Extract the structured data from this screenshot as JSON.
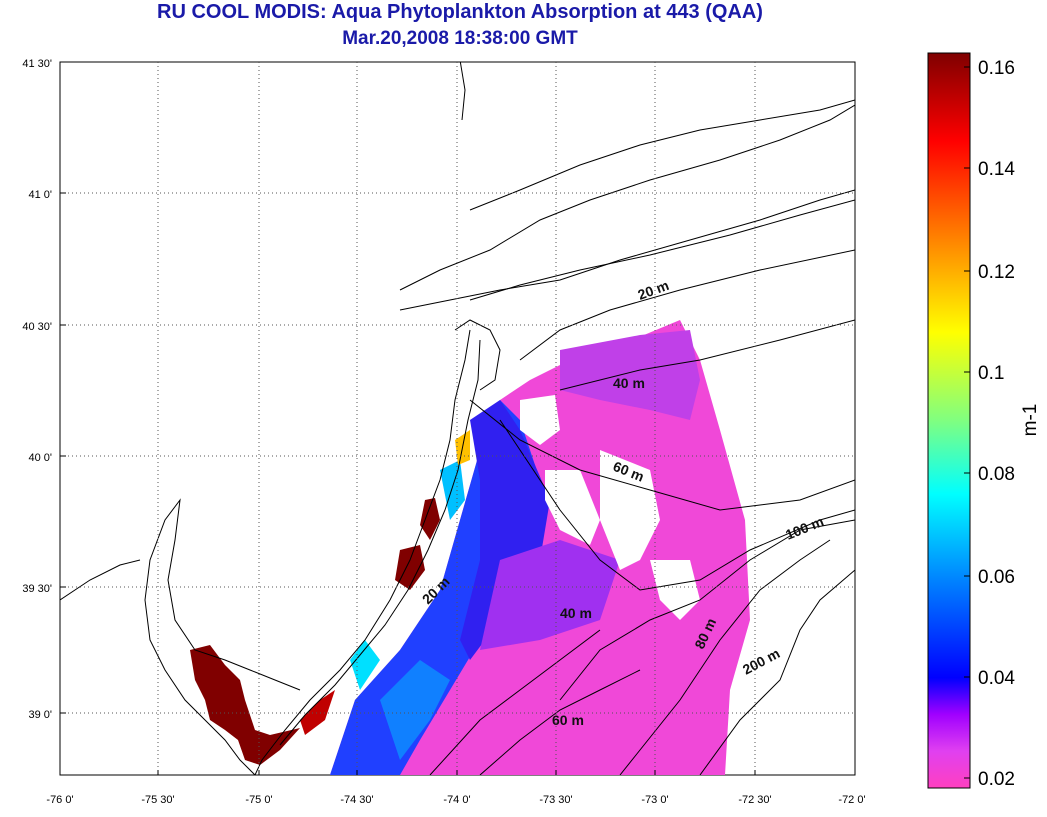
{
  "title": "RU COOL MODIS: Aqua Phytoplankton Absorption at 443 (QAA)",
  "subtitle": "Mar.20,2008 18:38:00 GMT",
  "x_ticks": [
    "-76 0'",
    "-75 30'",
    "-75 0'",
    "-74 30'",
    "-74 0'",
    "-73 30'",
    "-73 0'",
    "-72 30'",
    "-72 0'"
  ],
  "y_ticks": [
    "41 30'",
    "41 0'",
    "40 30'",
    "40 0'",
    "39 30'",
    "39 0'"
  ],
  "colorbar": {
    "label": "m-1",
    "ticks": [
      "0.16",
      "0.14",
      "0.12",
      "0.1",
      "0.08",
      "0.06",
      "0.04",
      "0.02"
    ],
    "colors": [
      "#7f0000",
      "#ff0000",
      "#ff8000",
      "#ffff00",
      "#80ff80",
      "#00ffff",
      "#0080ff",
      "#0000ff",
      "#a000ff",
      "#ff40ff",
      "#ff40c0"
    ]
  },
  "isobaths": [
    "20 m",
    "40 m",
    "60 m",
    "100 m",
    "20 m",
    "40 m",
    "80 m",
    "200 m",
    "60 m"
  ]
}
